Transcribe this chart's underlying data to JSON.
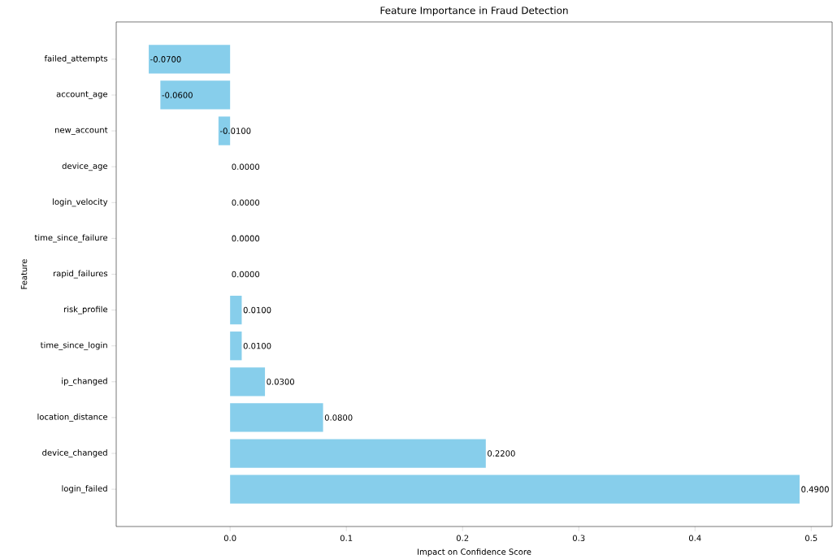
{
  "chart_data": {
    "type": "bar",
    "orientation": "horizontal",
    "title": "Feature Importance in Fraud Detection",
    "xlabel": "Impact on Confidence Score",
    "ylabel": "Feature",
    "categories": [
      "failed_attempts",
      "account_age",
      "new_account",
      "device_age",
      "login_velocity",
      "time_since_failure",
      "rapid_failures",
      "risk_profile",
      "time_since_login",
      "ip_changed",
      "location_distance",
      "device_changed",
      "login_failed"
    ],
    "values": [
      -0.07,
      -0.06,
      -0.01,
      0,
      0,
      0,
      0,
      0.01,
      0.01,
      0.03,
      0.08,
      0.22,
      0.49
    ],
    "value_labels": [
      "-0.0700",
      "-0.0600",
      "-0.0100",
      "0.0000",
      "0.0000",
      "0.0000",
      "0.0000",
      "0.0100",
      "0.0100",
      "0.0300",
      "0.0800",
      "0.2200",
      "0.4900"
    ],
    "color": "#87ceeb",
    "xlim": [
      -0.098,
      0.518
    ],
    "xticks": [
      {
        "value": 0,
        "label": "0.0"
      },
      {
        "value": 0.1,
        "label": "0.1"
      },
      {
        "value": 0.2,
        "label": "0.2"
      },
      {
        "value": 0.3,
        "label": "0.3"
      },
      {
        "value": 0.4,
        "label": "0.4"
      },
      {
        "value": 0.5,
        "label": "0.5"
      }
    ],
    "grid": false
  }
}
